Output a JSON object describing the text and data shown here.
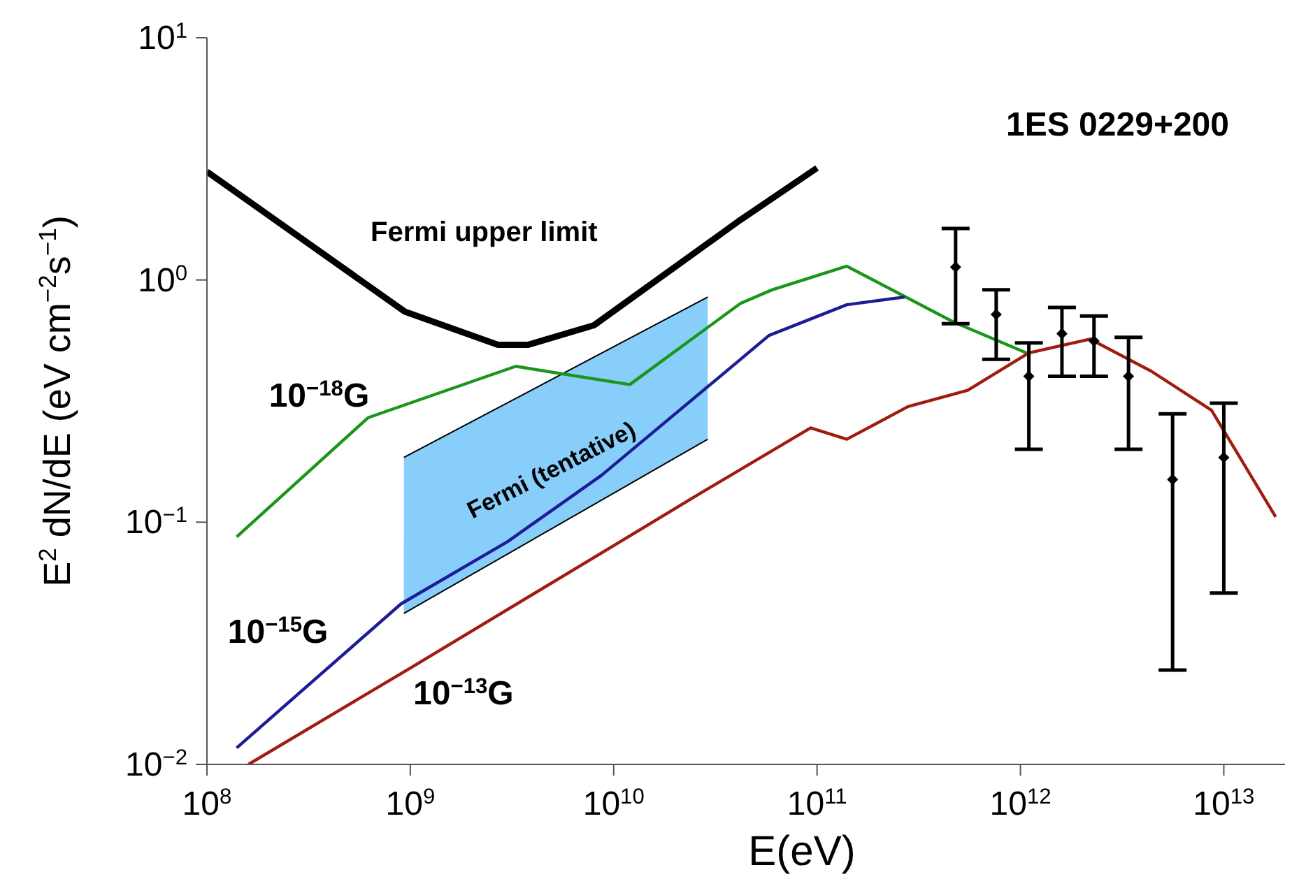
{
  "chart_data": {
    "type": "line",
    "title": "1ES 0229+200",
    "xlabel": "E(eV)",
    "ylabel": "E$^{2}$ dN/dE (eV cm$^{−2}$s$^{−1}$)",
    "log": "xy",
    "xlim": [
      100000000.0,
      20000000000000.0
    ],
    "ylim": [
      0.01,
      10
    ],
    "xticks": [
      {
        "value": 100000000.0,
        "label": "10$^{8}$"
      },
      {
        "value": 1000000000.0,
        "label": "10$^{9}$"
      },
      {
        "value": 10000000000.0,
        "label": "10$^{10}$"
      },
      {
        "value": 100000000000.0,
        "label": "10$^{11}$"
      },
      {
        "value": 1000000000000.0,
        "label": "10$^{12}$"
      },
      {
        "value": 10000000000000.0,
        "label": "10$^{13}$"
      }
    ],
    "yticks": [
      {
        "value": 0.01,
        "label": "10$^{−2}$"
      },
      {
        "value": 0.1,
        "label": "10$^{−1}$"
      },
      {
        "value": 1,
        "label": "10$^{0}$"
      },
      {
        "value": 10,
        "label": "10$^{1}$"
      }
    ],
    "grid": false,
    "series": [
      {
        "type": "area",
        "name": "Fermi (tentative)",
        "color": "#87cefa",
        "x": [
          930000000.0,
          29000000000.0
        ],
        "values": [
          0.185,
          0.85
        ]
      },
      {
        "type": "line",
        "color": "#000000",
        "x": [
          930000000.0,
          29000000000.0
        ],
        "values": [
          0.042,
          0.22
        ]
      },
      {
        "name": "Fermi upper limit",
        "color": "#000000",
        "x": [
          100000000.0,
          940000000.0,
          2700000000.0,
          3800000000.0,
          8000000000.0,
          42000000000.0,
          100000000000.0
        ],
        "values": [
          2.8,
          0.74,
          0.54,
          0.54,
          0.65,
          1.77,
          2.9
        ]
      },
      {
        "name": "10$^{−18}$G",
        "color": "#1a961a",
        "x": [
          140000000.0,
          620000000.0,
          3300000000.0,
          12000000000.0,
          42000000000.0,
          60000000000.0,
          140000000000.0,
          470000000000.0,
          1070000000000.0
        ],
        "values": [
          0.087,
          0.27,
          0.44,
          0.37,
          0.8,
          0.91,
          1.14,
          0.67,
          0.5
        ]
      },
      {
        "name": "10$^{−15}$G",
        "color": "#1c1c96",
        "x": [
          140000000.0,
          900000000.0,
          3000000000.0,
          8700000000.0,
          42000000000.0,
          58000000000.0,
          140000000000.0,
          270000000000.0
        ],
        "values": [
          0.0117,
          0.046,
          0.083,
          0.156,
          0.47,
          0.59,
          0.79,
          0.85
        ]
      },
      {
        "name": "10$^{−13}$G",
        "color": "#a01c10",
        "x": [
          160000000.0,
          1000000000.0,
          10000000000.0,
          26000000000.0,
          93000000000.0,
          140000000000.0,
          280000000000.0,
          550000000000.0,
          1100000000000.0,
          2200000000000.0,
          4400000000000.0,
          8700000000000.0,
          18000000000000.0
        ],
        "values": [
          0.01,
          0.025,
          0.08,
          0.13,
          0.245,
          0.22,
          0.3,
          0.35,
          0.5,
          0.57,
          0.42,
          0.29,
          0.105
        ]
      },
      {
        "type": "scatter",
        "color": "#000000",
        "marker": "diamond",
        "x": [
          480000000000.0,
          760000000000.0,
          1100000000000.0,
          1600000000000.0,
          2300000000000.0,
          3400000000000.0,
          5600000000000.0,
          10000000000000.0
        ],
        "values": [
          1.13,
          0.72,
          0.4,
          0.6,
          0.56,
          0.4,
          0.15,
          0.185
        ],
        "errors": [
          [
            0.66,
            1.63
          ],
          [
            0.47,
            0.91
          ],
          [
            0.2,
            0.55
          ],
          [
            0.4,
            0.77
          ],
          [
            0.4,
            0.71
          ],
          [
            0.2,
            0.58
          ],
          [
            0.0245,
            0.28
          ],
          [
            0.051,
            0.31
          ]
        ]
      }
    ]
  }
}
